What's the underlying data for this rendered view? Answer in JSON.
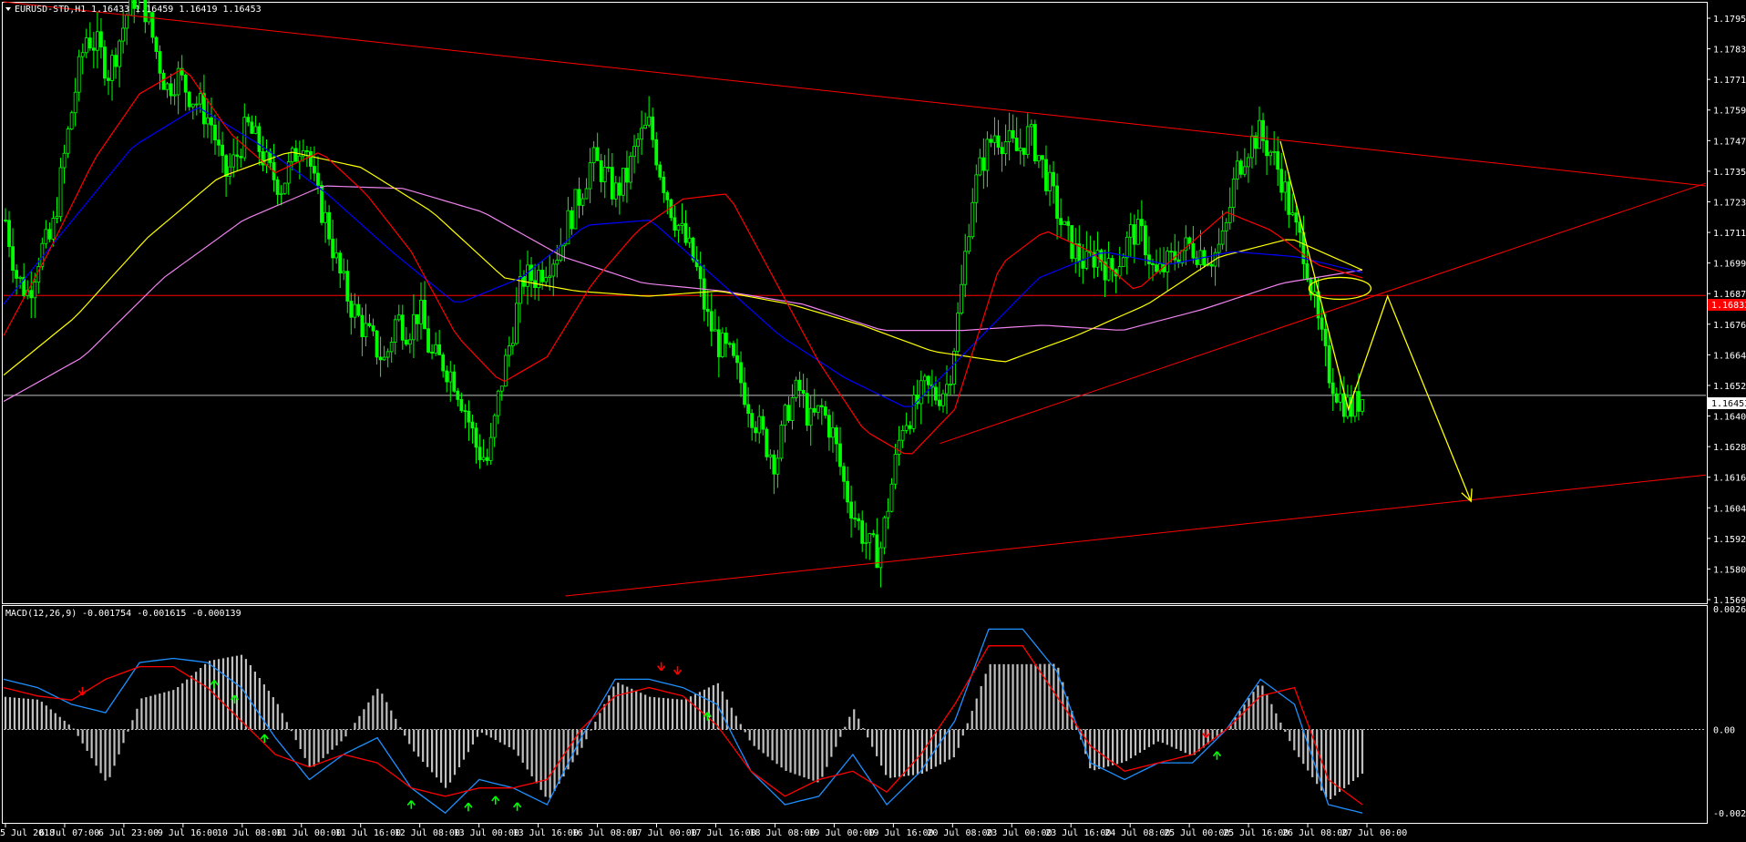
{
  "header": {
    "symbol": "EURUSD-STD,H1",
    "ohlc": "1.16433 1.16459 1.16419 1.16453"
  },
  "macd_header": {
    "label": "MACD(12,26,9)",
    "values": "-0.001754 -0.001615 -0.000139"
  },
  "colors": {
    "background": "#000000",
    "grid_border": "#ffffff",
    "candle": "#00ff00",
    "ma_fast": "#ff0000",
    "ma_mid": "#0000ff",
    "ma_slow": "#ffff00",
    "ma_long": "#ee82ee",
    "trendline": "#ff0000",
    "forecast": "#ffff00",
    "macd_line": "#1e90ff",
    "signal_line": "#ff0000",
    "histogram": "#c0c0c0",
    "up_arrow": "#00ff00",
    "down_arrow": "#ff0000"
  },
  "price_axis": {
    "labels": [
      "1.17950",
      "1.17830",
      "1.17710",
      "1.17590",
      "1.17475",
      "1.17355",
      "1.17235",
      "1.17115",
      "1.16999",
      "1.16875",
      "1.16760",
      "1.16640",
      "1.16520",
      "1.16400",
      "1.16280",
      "1.16165",
      "1.16045",
      "1.15925",
      "1.15805",
      "1.15690"
    ],
    "current_price_tag": "1.16453",
    "resistance_tag": "1.16833"
  },
  "macd_axis": {
    "labels": [
      "0.002626",
      "0.00",
      "-0.002127"
    ]
  },
  "time_axis": {
    "labels": [
      "5 Jul 2018",
      "6 Jul 07:00",
      "6 Jul 23:00",
      "9 Jul 16:00",
      "10 Jul 08:00",
      "11 Jul 00:00",
      "11 Jul 16:00",
      "12 Jul 08:00",
      "13 Jul 00:00",
      "13 Jul 16:00",
      "16 Jul 08:00",
      "17 Jul 00:00",
      "17 Jul 16:00",
      "18 Jul 08:00",
      "19 Jul 00:00",
      "19 Jul 16:00",
      "20 Jul 08:00",
      "23 Jul 00:00",
      "23 Jul 16:00",
      "24 Jul 08:00",
      "25 Jul 00:00",
      "25 Jul 16:00",
      "26 Jul 08:00",
      "27 Jul 00:00"
    ]
  },
  "chart_data": {
    "type": "candlestick",
    "price_range": [
      1.1569,
      1.1795
    ],
    "macd_range": [
      -0.002127,
      0.002626
    ],
    "price_path": [
      1.1712,
      1.169,
      1.1684,
      1.17,
      1.1705,
      1.1733,
      1.176,
      1.1782,
      1.1778,
      1.1768,
      1.1782,
      1.1797,
      1.1795,
      1.1778,
      1.1762,
      1.1767,
      1.176,
      1.1755,
      1.1748,
      1.1728,
      1.1735,
      1.1748,
      1.174,
      1.173,
      1.1725,
      1.1735,
      1.1745,
      1.1722,
      1.171,
      1.1692,
      1.168,
      1.1672,
      1.1665,
      1.1658,
      1.1675,
      1.167,
      1.1678,
      1.166,
      1.1658,
      1.1652,
      1.164,
      1.1625,
      1.162,
      1.1648,
      1.1668,
      1.169,
      1.169,
      1.1695,
      1.17,
      1.1712,
      1.1722,
      1.1735,
      1.173,
      1.1722,
      1.1728,
      1.1742,
      1.1748,
      1.173,
      1.1715,
      1.1705,
      1.1695,
      1.1675,
      1.1665,
      1.166,
      1.165,
      1.1638,
      1.1628,
      1.162,
      1.164,
      1.1648,
      1.1635,
      1.164,
      1.163,
      1.161,
      1.1598,
      1.1588,
      1.1585,
      1.161,
      1.1635,
      1.164,
      1.1648,
      1.1645,
      1.165,
      1.168,
      1.172,
      1.1735,
      1.1745,
      1.1742,
      1.1738,
      1.1745,
      1.1735,
      1.1722,
      1.1708,
      1.17,
      1.1695,
      1.17,
      1.1692,
      1.1698,
      1.1708,
      1.1705,
      1.169,
      1.1695,
      1.17,
      1.1702,
      1.17,
      1.1698,
      1.1705,
      1.173,
      1.174,
      1.1745,
      1.1738,
      1.1728,
      1.171,
      1.17,
      1.1675,
      1.1655,
      1.1645,
      1.164,
      1.1645
    ],
    "ma_fast": [
      1.1668,
      1.17,
      1.1735,
      1.176,
      1.177,
      1.1745,
      1.173,
      1.1738,
      1.1722,
      1.17,
      1.1668,
      1.165,
      1.166,
      1.1688,
      1.1708,
      1.172,
      1.1722,
      1.169,
      1.1658,
      1.1632,
      1.1622,
      1.164,
      1.1695,
      1.1708,
      1.17,
      1.1685,
      1.17,
      1.1715,
      1.1708,
      1.1695,
      1.169
    ],
    "ma_mid": [
      1.168,
      1.171,
      1.174,
      1.1755,
      1.174,
      1.1722,
      1.17,
      1.168,
      1.169,
      1.171,
      1.1712,
      1.169,
      1.1668,
      1.1652,
      1.164,
      1.1665,
      1.169,
      1.17,
      1.1695,
      1.17,
      1.1698,
      1.1692
    ],
    "ma_slow": [
      1.1653,
      1.1675,
      1.1705,
      1.1728,
      1.1738,
      1.1732,
      1.1715,
      1.169,
      1.1685,
      1.1683,
      1.1685,
      1.168,
      1.1672,
      1.1662,
      1.1658,
      1.1668,
      1.168,
      1.1698,
      1.1705,
      1.1693
    ],
    "ma_long": [
      1.1643,
      1.166,
      1.169,
      1.1712,
      1.1725,
      1.1724,
      1.1715,
      1.1698,
      1.1688,
      1.1685,
      1.168,
      1.167,
      1.167,
      1.1672,
      1.167,
      1.1678,
      1.1688,
      1.1693
    ],
    "macd_line": [
      0.0012,
      0.001,
      0.0006,
      0.0004,
      0.0016,
      0.0017,
      0.0016,
      0.001,
      -0.0002,
      -0.0012,
      -0.0006,
      -0.0002,
      -0.0014,
      -0.002,
      -0.0012,
      -0.0014,
      -0.0018,
      -0.0002,
      0.0012,
      0.0012,
      0.001,
      0.0006,
      -0.001,
      -0.0018,
      -0.0016,
      -0.0006,
      -0.0018,
      -0.001,
      0.0002,
      0.0024,
      0.0024,
      0.0014,
      -0.0008,
      -0.0012,
      -0.0008,
      -0.0008,
      0.0,
      0.0012,
      0.0006,
      -0.0018,
      -0.002
    ],
    "signal_line": [
      0.001,
      0.0008,
      0.0007,
      0.0012,
      0.0015,
      0.0015,
      0.001,
      0.0002,
      -0.0006,
      -0.0009,
      -0.0006,
      -0.0008,
      -0.0014,
      -0.0016,
      -0.0014,
      -0.0014,
      -0.0012,
      0.0,
      0.0008,
      0.001,
      0.0008,
      0.0001,
      -0.001,
      -0.0016,
      -0.0012,
      -0.001,
      -0.0015,
      -0.0006,
      0.0006,
      0.002,
      0.002,
      0.0008,
      -0.0004,
      -0.001,
      -0.0008,
      -0.0006,
      0.0,
      0.0008,
      0.001,
      -0.0012,
      -0.0018
    ],
    "trendlines": [
      {
        "from": [
          0,
          1.1795
        ],
        "to": [
          1,
          1.1725
        ]
      },
      {
        "from": [
          0.55,
          1.1627
        ],
        "to": [
          1,
          1.1726
        ]
      },
      {
        "from": [
          0.33,
          1.1569
        ],
        "to": [
          1,
          1.1615
        ]
      },
      {
        "from": [
          0,
          1.16833
        ],
        "to": [
          1,
          1.16833
        ]
      },
      {
        "from": [
          0,
          1.16453
        ],
        "to": [
          1,
          1.16453
        ]
      }
    ],
    "forecast_path": [
      [
        0.75,
        1.1742
      ],
      [
        0.79,
        1.164
      ],
      [
        0.813,
        1.1683
      ],
      [
        0.862,
        1.1605
      ]
    ],
    "forecast_ellipse": {
      "center": [
        0.785,
        1.1686
      ]
    }
  }
}
